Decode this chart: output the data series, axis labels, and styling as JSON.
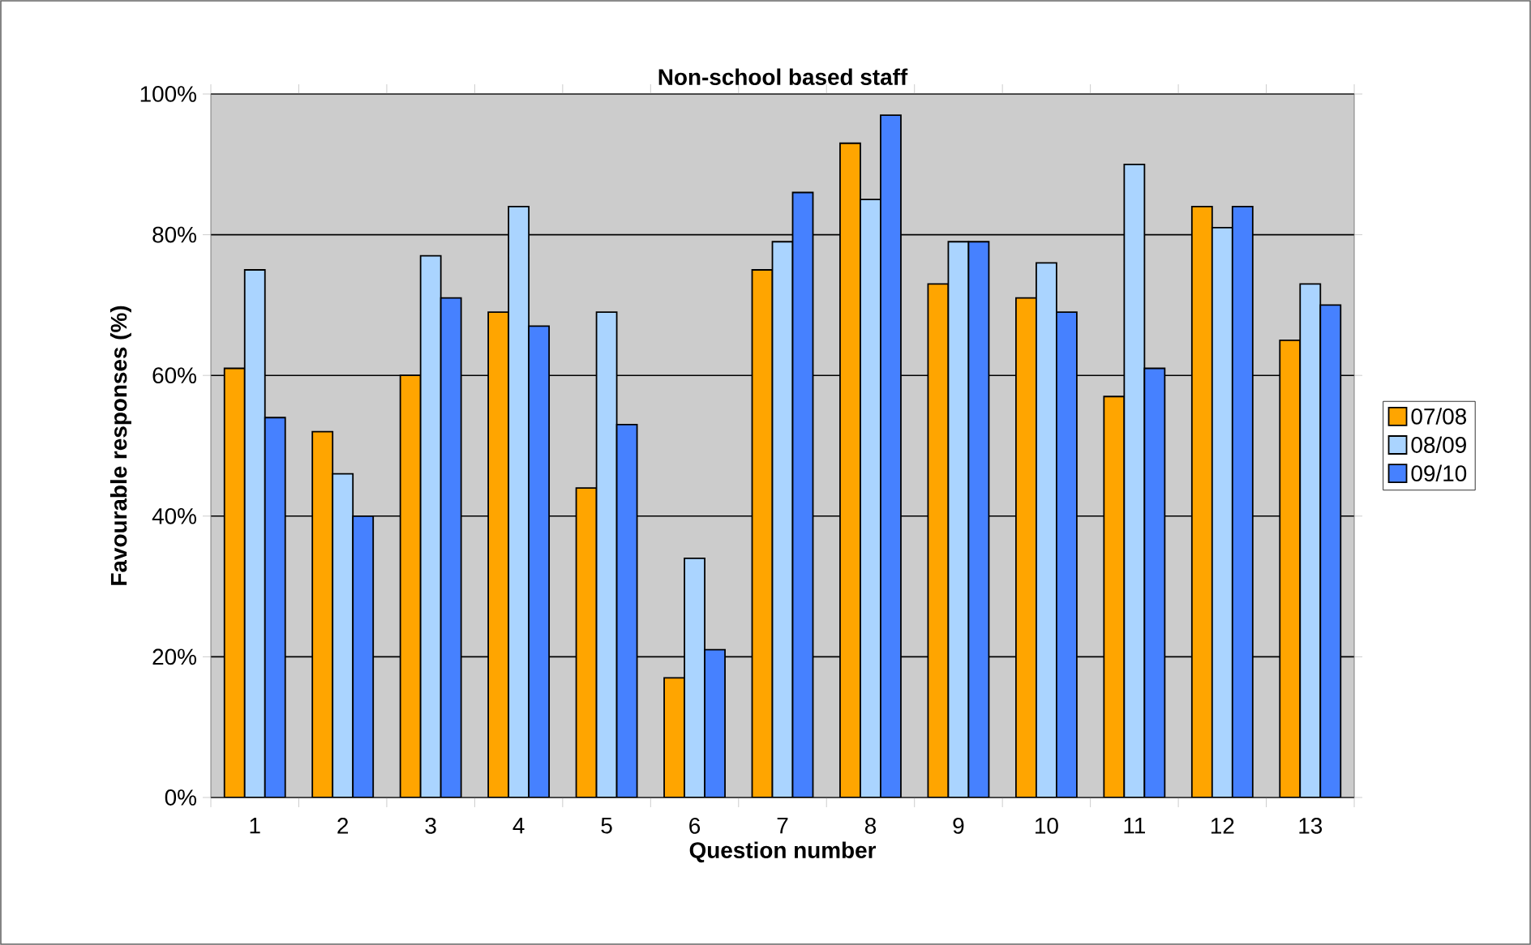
{
  "chart_data": {
    "type": "bar",
    "title": "Non-school based staff",
    "xlabel": "Question number",
    "ylabel": "Favourable responses (%)",
    "categories": [
      "1",
      "2",
      "3",
      "4",
      "5",
      "6",
      "7",
      "8",
      "9",
      "10",
      "11",
      "12",
      "13"
    ],
    "series": [
      {
        "name": "07/08",
        "color": "#ffa500",
        "values": [
          61,
          52,
          60,
          69,
          44,
          17,
          75,
          93,
          73,
          71,
          57,
          84,
          65
        ]
      },
      {
        "name": "08/09",
        "color": "#aad4ff",
        "values": [
          75,
          46,
          77,
          84,
          69,
          34,
          79,
          85,
          79,
          76,
          90,
          81,
          73
        ]
      },
      {
        "name": "09/10",
        "color": "#4681ff",
        "values": [
          54,
          40,
          71,
          67,
          53,
          21,
          86,
          97,
          79,
          69,
          61,
          84,
          70
        ]
      }
    ],
    "ylim": [
      0,
      100
    ],
    "yticks": [
      {
        "value": 0,
        "label": "0%"
      },
      {
        "value": 20,
        "label": "20%"
      },
      {
        "value": 40,
        "label": "40%"
      },
      {
        "value": 60,
        "label": "60%"
      },
      {
        "value": 80,
        "label": "80%"
      },
      {
        "value": 100,
        "label": "100%"
      }
    ],
    "grid": "y",
    "legend": "right"
  }
}
